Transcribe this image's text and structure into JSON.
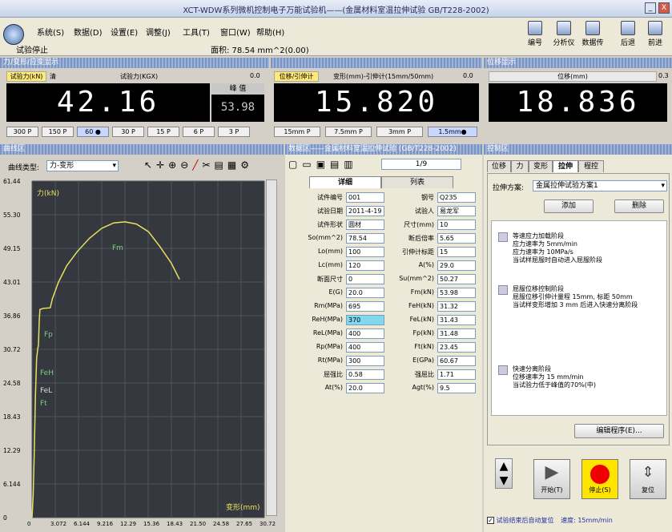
{
  "window": {
    "title": "XCT-WDW系列微机控制电子万能试验机——(金属材料室温拉伸试验 GB/T228-2002)",
    "min_label": "_",
    "close_label": "X"
  },
  "menu": {
    "items": [
      "系统(S)",
      "数据(D)",
      "设置(E)",
      "调整(J)",
      "工具(T)",
      "窗口(W)",
      "帮助(H)"
    ],
    "status": "试验停止",
    "area": "面积: 78.54 mm^2(0.00)"
  },
  "toolbar": {
    "items": [
      {
        "label": "编号",
        "icon": "document-icon"
      },
      {
        "label": "分析仪",
        "icon": "analyzer-icon"
      },
      {
        "label": "数据传",
        "icon": "transfer-icon"
      },
      {
        "label": "后退",
        "icon": "back-arrow-icon"
      },
      {
        "label": "前进",
        "icon": "forward-arrow-icon"
      }
    ]
  },
  "force_panel": {
    "header": "力/变形/应变显示",
    "tab_label": "试验力(kN)",
    "tab_btn": "清",
    "subtitle": "试验力(KGX)",
    "value": "42.16",
    "reading_prefix": "0.0",
    "peak_label": "峰 值",
    "peak_value": "53.98",
    "ranges": [
      "300 P",
      "150 P",
      "60 ●",
      "30 P",
      "15 P",
      "6 P",
      "3 P"
    ]
  },
  "deform_panel": {
    "tab_label": "位移/引伸计",
    "subtitle": "变形(mm)-引伸计(15mm/50mm)",
    "value": "15.820",
    "reading_prefix": "0.0",
    "ranges": [
      "15mm P",
      "7.5mm P",
      "3mm P",
      "1.5mm●"
    ]
  },
  "position_panel": {
    "header": "位移显示",
    "subtitle": "位移(mm)",
    "reading_prefix": "0.3",
    "value": "18.836"
  },
  "curve_panel": {
    "header": "曲线区",
    "type_label": "曲线类型:",
    "type_value": "力-变形",
    "y_ticks": [
      "61.44",
      "55.30",
      "49.15",
      "43.01",
      "36.86",
      "30.72",
      "24.58",
      "18.43",
      "12.29",
      "6.144",
      "0"
    ],
    "x_ticks": [
      "0",
      "3.072",
      "6.144",
      "9.216",
      "12.29",
      "15.36",
      "18.43",
      "21.50",
      "24.58",
      "27.65",
      "30.72"
    ],
    "y_axis_label": "力(kN)",
    "x_axis_label": "变形(mm)",
    "markers": [
      "Fm",
      "Fp",
      "FeH",
      "FeL",
      "Ft"
    ],
    "color_line": "#e8e060",
    "color_bg": "#35383e"
  },
  "chart_data": {
    "type": "line",
    "xlabel": "变形(mm)",
    "ylabel": "力(kN)",
    "xlim": [
      0,
      30.72
    ],
    "ylim": [
      0,
      61.44
    ],
    "series": [
      {
        "values": [
          [
            0,
            0
          ],
          [
            0.15,
            4
          ],
          [
            0.3,
            12
          ],
          [
            0.45,
            22
          ],
          [
            0.6,
            29
          ],
          [
            0.75,
            30.8
          ],
          [
            0.85,
            31.5
          ],
          [
            0.95,
            36
          ],
          [
            1.05,
            38
          ],
          [
            1.5,
            38.2
          ],
          [
            2.4,
            38.3
          ],
          [
            2.7,
            40
          ],
          [
            3.5,
            43
          ],
          [
            4.6,
            46
          ],
          [
            6.0,
            48.6
          ],
          [
            7.6,
            51
          ],
          [
            9.2,
            52.8
          ],
          [
            10.8,
            53.8
          ],
          [
            12.3,
            54.0
          ],
          [
            13.8,
            53.6
          ],
          [
            15.4,
            52.2
          ],
          [
            16.9,
            49.5
          ],
          [
            18.4,
            46.5
          ],
          [
            19.5,
            43.5
          ]
        ]
      }
    ]
  },
  "data_panel": {
    "header": "数据区——金属材料室温拉伸试验 (GB/T228-2002)",
    "page": "1/9",
    "tabs": [
      "详细",
      "列表"
    ],
    "left_fields": [
      {
        "label": "试件编号",
        "value": "001"
      },
      {
        "label": "试验日期",
        "value": "2011-4-19"
      },
      {
        "label": "试件形状",
        "value": "圆材"
      },
      {
        "label": "So(mm^2)",
        "value": "78.54"
      },
      {
        "label": "Lo(mm)",
        "value": "100"
      },
      {
        "label": "Lc(mm)",
        "value": "120"
      },
      {
        "label": "断面尺寸",
        "value": "0"
      },
      {
        "label": "E(G)",
        "value": "20.0"
      },
      {
        "label": "Rm(MPa)",
        "value": "695"
      },
      {
        "label": "ReH(MPa)",
        "value": "370"
      },
      {
        "label": "ReL(MPa)",
        "value": "400"
      },
      {
        "label": "Rp(MPa)",
        "value": "400"
      },
      {
        "label": "Rt(MPa)",
        "value": "300"
      },
      {
        "label": "屈强比",
        "value": "0.58"
      },
      {
        "label": "At(%)",
        "value": "20.0"
      }
    ],
    "right_fields": [
      {
        "label": "钢号",
        "value": "Q235"
      },
      {
        "label": "试验人",
        "value": "易龙军"
      },
      {
        "label": "尺寸(mm)",
        "value": "10"
      },
      {
        "label": "断后倍率",
        "value": "5.65"
      },
      {
        "label": "引伸计标距",
        "value": "15"
      },
      {
        "label": "A(%)",
        "value": "29.0"
      },
      {
        "label": "Su(mm^2)",
        "value": "50.27"
      },
      {
        "label": "Fm(kN)",
        "value": "53.98"
      },
      {
        "label": "FeH(kN)",
        "value": "31.32"
      },
      {
        "label": "FeL(kN)",
        "value": "31.43"
      },
      {
        "label": "Fp(kN)",
        "value": "31.48"
      },
      {
        "label": "Ft(kN)",
        "value": "23.45"
      },
      {
        "label": "E(GPa)",
        "value": "60.67"
      },
      {
        "label": "强屈比",
        "value": "1.71"
      },
      {
        "label": "Agt(%)",
        "value": "9.5"
      }
    ]
  },
  "control_panel": {
    "header": "控制区",
    "tabs": [
      "位移",
      "力",
      "变形",
      "拉伸",
      "程控"
    ],
    "scheme_label": "拉伸方案:",
    "scheme_value": "金属拉伸试验方案1",
    "add_label": "添加",
    "delete_label": "删除",
    "steps": [
      [
        "等速应力加载阶段",
        "应力速率为 5mm/min",
        "应力速率为 10MPa/s",
        "当试样屈服时自动进入屈服阶段"
      ],
      [
        "屈服位移控制阶段",
        "屈服位移引伸计量程 15mm, 标距 50mm",
        "当试样变形增加 3 mm 后进入快速分离阶段"
      ],
      [
        "快速分离阶段",
        "位移速率为 15 mm/min",
        "当试验力低于峰值的70%(中)"
      ]
    ],
    "edit_label": "编辑程序(E)...",
    "run_label": "开始(T)",
    "stop_label": "停止(S)",
    "reset_label": "复位",
    "footer_check": "试验结束后自动复位",
    "footer_speed": "速度: 15mm/min"
  }
}
